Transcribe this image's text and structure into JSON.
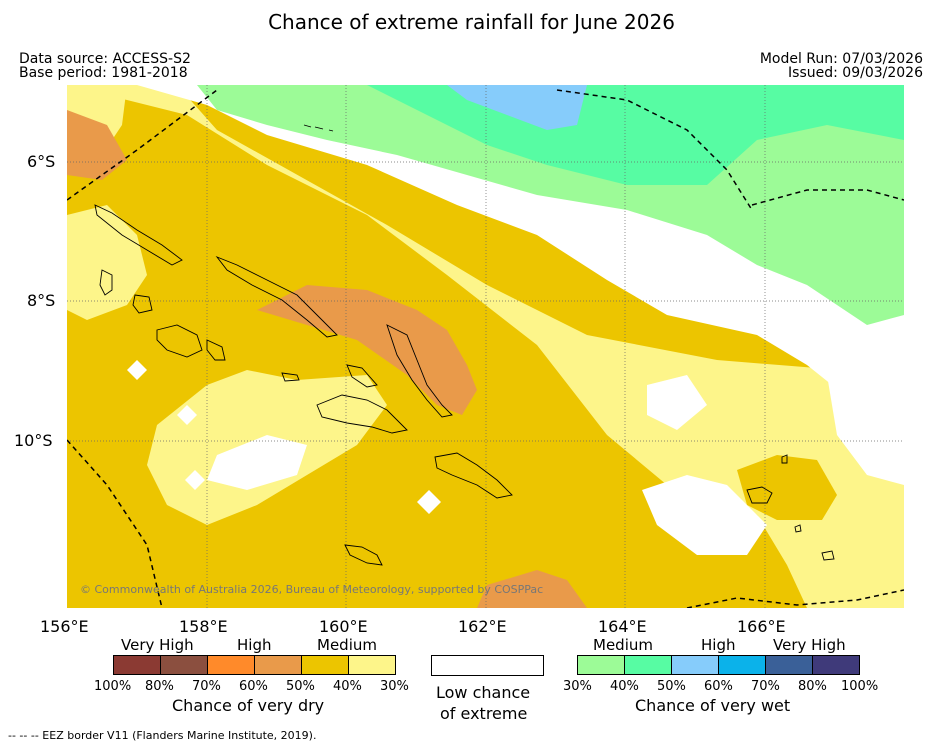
{
  "title": "Chance of extreme rainfall for June 2026",
  "meta": {
    "source": "Data source: ACCESS-S2",
    "base": "Base period: 1981-2018",
    "model_run": "Model Run: 07/03/2026",
    "issued": "Issued: 09/03/2026"
  },
  "lat_ticks": [
    "6°S",
    "8°S",
    "10°S"
  ],
  "lon_ticks": [
    "156°E",
    "158°E",
    "160°E",
    "162°E",
    "164°E",
    "166°E"
  ],
  "copyright": "© Commonwealth of Australia 2026, Bureau of Meteorology, supported by COSPPac",
  "legend": {
    "dry": {
      "categories": [
        "Very High",
        "High",
        "Medium"
      ],
      "title": "Chance of very dry",
      "percents": [
        "100%",
        "80%",
        "70%",
        "60%",
        "50%",
        "40%",
        "30%"
      ],
      "colors": [
        "#8b3a33",
        "#8b4f3f",
        "#ff8a2a",
        "#e99a4a",
        "#ecc500",
        "#fdf58a"
      ]
    },
    "neutral": {
      "line1": "Low chance",
      "line2": "of extreme",
      "color": "#ffffff"
    },
    "wet": {
      "categories": [
        "Medium",
        "High",
        "Very High"
      ],
      "title": "Chance of very wet",
      "percents": [
        "30%",
        "40%",
        "50%",
        "60%",
        "70%",
        "80%",
        "100%"
      ],
      "colors": [
        "#9cfb97",
        "#57fca3",
        "#86ccfb",
        "#0bb2ea",
        "#3a6098",
        "#3f3a7a"
      ]
    }
  },
  "footnote": "-- -- -- EEZ border V11 (Flanders Marine Institute, 2019)."
}
